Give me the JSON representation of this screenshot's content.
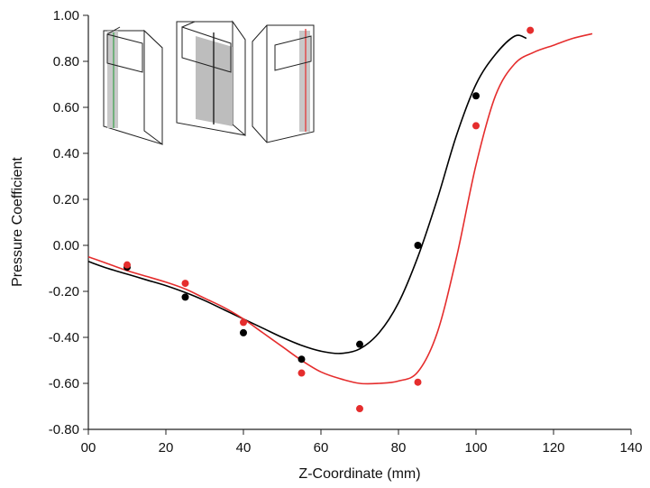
{
  "chart_data": {
    "type": "scatter",
    "title": "",
    "xlabel": "Z-Coordinate (mm)",
    "ylabel": "Pressure Coefficient",
    "xlim": [
      0,
      140
    ],
    "ylim": [
      -0.8,
      1.0
    ],
    "x_ticks": [
      0,
      20,
      40,
      60,
      80,
      100,
      120,
      140
    ],
    "x_tick_labels": [
      "00",
      "20",
      "40",
      "60",
      "80",
      "100",
      "120",
      "140"
    ],
    "y_ticks": [
      -0.8,
      -0.6,
      -0.4,
      -0.2,
      0.0,
      0.2,
      0.4,
      0.6,
      0.8,
      1.0
    ],
    "y_tick_labels": [
      "-0.80",
      "-0.60",
      "-0.40",
      "-0.20",
      "0.00",
      "0.20",
      "0.40",
      "0.60",
      "0.80",
      "1.00"
    ],
    "grid": false,
    "legend": "none",
    "series": [
      {
        "kind": "scatter",
        "color": "#000000",
        "x": [
          10,
          25,
          40,
          55,
          70,
          85,
          100
        ],
        "y": [
          -0.095,
          -0.225,
          -0.38,
          -0.495,
          -0.43,
          0.0,
          0.65
        ]
      },
      {
        "kind": "scatter",
        "color": "#e52d2d",
        "x": [
          10,
          25,
          40,
          55,
          70,
          85,
          100,
          114
        ],
        "y": [
          -0.085,
          -0.165,
          -0.335,
          -0.555,
          -0.71,
          -0.595,
          0.52,
          0.935
        ]
      },
      {
        "kind": "line",
        "color": "#000000",
        "x": [
          0,
          5,
          10,
          15,
          20,
          25,
          30,
          35,
          40,
          45,
          50,
          55,
          60,
          65,
          70,
          75,
          80,
          85,
          90,
          95,
          100,
          105,
          110,
          113
        ],
        "y": [
          -0.07,
          -0.1,
          -0.125,
          -0.15,
          -0.175,
          -0.205,
          -0.24,
          -0.28,
          -0.32,
          -0.36,
          -0.4,
          -0.435,
          -0.46,
          -0.47,
          -0.45,
          -0.38,
          -0.25,
          -0.05,
          0.2,
          0.48,
          0.7,
          0.83,
          0.91,
          0.9
        ]
      },
      {
        "kind": "line",
        "color": "#e52d2d",
        "x": [
          0,
          5,
          10,
          15,
          20,
          25,
          30,
          35,
          40,
          45,
          50,
          55,
          60,
          65,
          70,
          75,
          80,
          85,
          90,
          95,
          100,
          105,
          110,
          115,
          120,
          125,
          130
        ],
        "y": [
          -0.05,
          -0.08,
          -0.11,
          -0.135,
          -0.16,
          -0.19,
          -0.23,
          -0.27,
          -0.32,
          -0.38,
          -0.44,
          -0.5,
          -0.55,
          -0.58,
          -0.6,
          -0.6,
          -0.59,
          -0.55,
          -0.38,
          -0.05,
          0.35,
          0.65,
          0.79,
          0.84,
          0.87,
          0.9,
          0.92
        ]
      }
    ]
  }
}
